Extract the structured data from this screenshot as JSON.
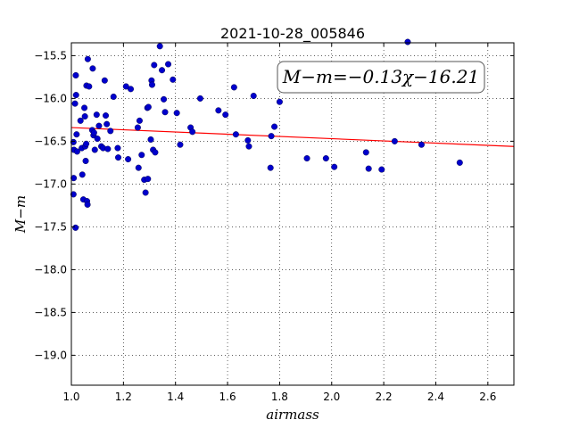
{
  "chart_data": {
    "type": "scatter",
    "title": "2021-10-28_005846",
    "xlabel": "airmass",
    "ylabel": "M−m",
    "xlim": [
      1.0,
      2.7
    ],
    "ylim": [
      -15.35,
      -19.35
    ],
    "y_inverted": true,
    "grid": true,
    "xticks": [
      "1.0",
      "1.2",
      "1.4",
      "1.6",
      "1.8",
      "2.0",
      "2.2",
      "2.4",
      "2.6"
    ],
    "xtick_values": [
      1.0,
      1.2,
      1.4,
      1.6,
      1.8,
      2.0,
      2.2,
      2.4,
      2.6
    ],
    "yticks": [
      "−15.5",
      "−16.0",
      "−16.5",
      "−17.0",
      "−17.5",
      "−18.0",
      "−18.5",
      "−19.0"
    ],
    "ytick_values": [
      -15.5,
      -16.0,
      -16.5,
      -17.0,
      -17.5,
      -18.0,
      -18.5,
      -19.0
    ],
    "annotation": "M−m=−0.13χ−16.21",
    "annotation_placement": "top-right",
    "fit_line": {
      "slope": -0.13,
      "intercept": -16.21,
      "color": "#ff0000"
    },
    "point_color": "#0000cc",
    "points": [
      [
        1.008,
        -16.51
      ],
      [
        1.009,
        -16.93
      ],
      [
        1.008,
        -17.12
      ],
      [
        1.01,
        -16.6
      ],
      [
        1.014,
        -16.06
      ],
      [
        1.017,
        -15.73
      ],
      [
        1.018,
        -15.96
      ],
      [
        1.016,
        -17.51
      ],
      [
        1.02,
        -16.42
      ],
      [
        1.022,
        -16.62
      ],
      [
        1.035,
        -16.26
      ],
      [
        1.04,
        -16.58
      ],
      [
        1.042,
        -16.89
      ],
      [
        1.046,
        -17.18
      ],
      [
        1.05,
        -16.11
      ],
      [
        1.052,
        -16.21
      ],
      [
        1.053,
        -16.56
      ],
      [
        1.055,
        -16.73
      ],
      [
        1.057,
        -16.53
      ],
      [
        1.058,
        -15.85
      ],
      [
        1.06,
        -17.2
      ],
      [
        1.062,
        -17.24
      ],
      [
        1.063,
        -15.54
      ],
      [
        1.068,
        -15.86
      ],
      [
        1.08,
        -16.37
      ],
      [
        1.082,
        -15.65
      ],
      [
        1.085,
        -16.43
      ],
      [
        1.087,
        -16.4
      ],
      [
        1.09,
        -16.6
      ],
      [
        1.097,
        -16.19
      ],
      [
        1.1,
        -16.47
      ],
      [
        1.106,
        -16.32
      ],
      [
        1.115,
        -16.56
      ],
      [
        1.122,
        -16.58
      ],
      [
        1.128,
        -15.79
      ],
      [
        1.132,
        -16.2
      ],
      [
        1.136,
        -16.3
      ],
      [
        1.14,
        -16.59
      ],
      [
        1.15,
        -16.38
      ],
      [
        1.162,
        -15.98
      ],
      [
        1.178,
        -16.58
      ],
      [
        1.18,
        -16.69
      ],
      [
        1.21,
        -15.86
      ],
      [
        1.218,
        -16.71
      ],
      [
        1.228,
        -15.89
      ],
      [
        1.255,
        -16.34
      ],
      [
        1.258,
        -16.81
      ],
      [
        1.262,
        -16.26
      ],
      [
        1.27,
        -16.66
      ],
      [
        1.28,
        -16.95
      ],
      [
        1.285,
        -17.1
      ],
      [
        1.292,
        -16.11
      ],
      [
        1.294,
        -16.94
      ],
      [
        1.296,
        -16.1
      ],
      [
        1.305,
        -16.48
      ],
      [
        1.308,
        -15.79
      ],
      [
        1.31,
        -15.84
      ],
      [
        1.314,
        -16.6
      ],
      [
        1.318,
        -15.61
      ],
      [
        1.322,
        -16.63
      ],
      [
        1.34,
        -15.39
      ],
      [
        1.348,
        -15.67
      ],
      [
        1.355,
        -16.01
      ],
      [
        1.36,
        -16.16
      ],
      [
        1.372,
        -15.6
      ],
      [
        1.39,
        -15.78
      ],
      [
        1.405,
        -16.17
      ],
      [
        1.418,
        -16.54
      ],
      [
        1.458,
        -16.34
      ],
      [
        1.465,
        -16.39
      ],
      [
        1.495,
        -16.0
      ],
      [
        1.565,
        -16.14
      ],
      [
        1.592,
        -16.19
      ],
      [
        1.625,
        -15.87
      ],
      [
        1.632,
        -16.42
      ],
      [
        1.678,
        -16.49
      ],
      [
        1.682,
        -16.56
      ],
      [
        1.7,
        -15.97
      ],
      [
        1.765,
        -16.81
      ],
      [
        1.768,
        -16.44
      ],
      [
        1.78,
        -16.33
      ],
      [
        1.8,
        -16.04
      ],
      [
        1.905,
        -16.7
      ],
      [
        1.978,
        -16.7
      ],
      [
        2.01,
        -16.8
      ],
      [
        2.132,
        -16.63
      ],
      [
        2.142,
        -16.82
      ],
      [
        2.192,
        -16.83
      ],
      [
        2.242,
        -16.5
      ],
      [
        2.292,
        -15.34
      ],
      [
        2.345,
        -16.54
      ],
      [
        2.492,
        -16.75
      ]
    ]
  }
}
